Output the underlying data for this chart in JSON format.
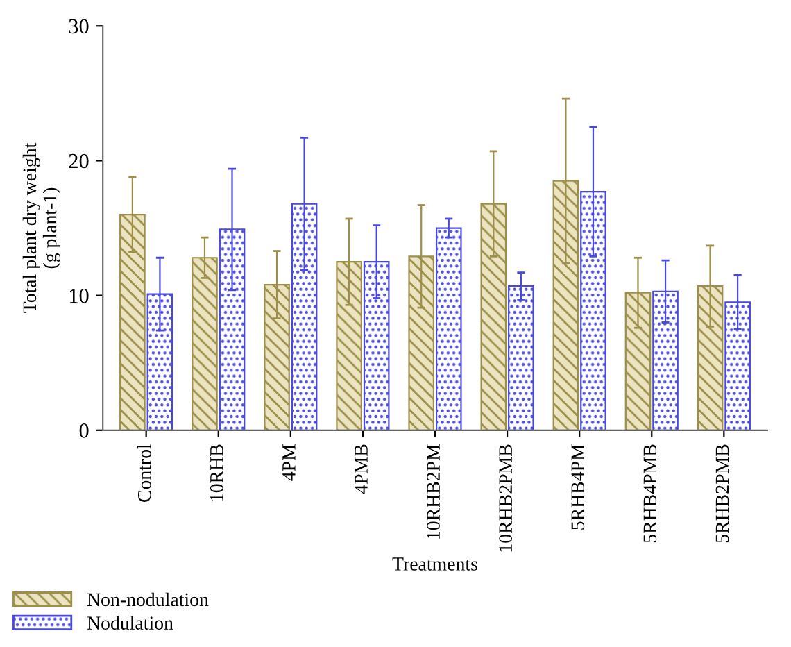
{
  "chart_data": {
    "type": "bar",
    "ylabel": "Total plant dry weight\n(g plant-1)",
    "xlabel": "Treatments",
    "categories": [
      "Control",
      "10RHB",
      "4PM",
      "4PMB",
      "10RHB2PM",
      "10RHB2PMB",
      "5RHB4PM",
      "5RHB4PMB",
      "5RHB2PMB"
    ],
    "series": [
      {
        "name": "Non-nodulation",
        "color": "#9c8f4a",
        "values": [
          16.0,
          12.8,
          10.8,
          12.5,
          12.9,
          16.8,
          18.5,
          10.2,
          10.7
        ],
        "errors": [
          2.8,
          1.5,
          2.5,
          3.2,
          3.8,
          3.9,
          6.1,
          2.6,
          3.0
        ]
      },
      {
        "name": "Nodulation",
        "color": "#4848e0",
        "values": [
          10.1,
          14.9,
          16.8,
          12.5,
          15.0,
          10.7,
          17.7,
          10.3,
          9.5
        ],
        "errors": [
          2.7,
          4.5,
          4.9,
          2.7,
          0.7,
          1.0,
          4.8,
          2.3,
          2.0
        ]
      }
    ],
    "ylim": [
      0,
      30
    ],
    "yticks": [
      0,
      10,
      20,
      30
    ],
    "grid": false,
    "legend": "bottom"
  }
}
